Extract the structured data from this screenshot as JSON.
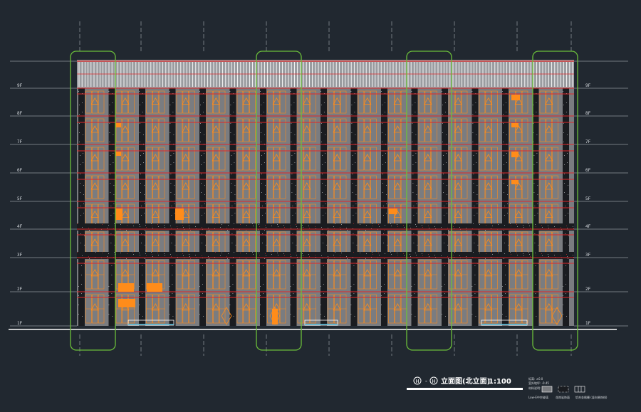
{
  "drawing": {
    "title_marker_left": "H",
    "title_dash": "-",
    "title_marker_right": "H",
    "title": "立面图(北立面)",
    "scale": "1:100",
    "floors": [
      "1F",
      "2F",
      "3F",
      "4F",
      "5F",
      "6F",
      "7F",
      "8F",
      "9F"
    ],
    "legend": {
      "notes": [
        "标高: ±0.0",
        "室外地坪: -0.45",
        "材料说明:"
      ],
      "items": [
        "Low-E中空玻璃",
        "花岗岩饰面",
        "铝合金格栅 (竖向装饰线)"
      ]
    },
    "colors": {
      "background": "#212830",
      "gridline": "#c8ccd0",
      "glass": "#7a7c80",
      "window_frame": "#ff8c1a",
      "band": "#e0282a",
      "stone": "#1a1c20",
      "cloud": "#6bbf3a",
      "parapet": "#ffffff",
      "entrance": "#4fb8d8"
    }
  }
}
